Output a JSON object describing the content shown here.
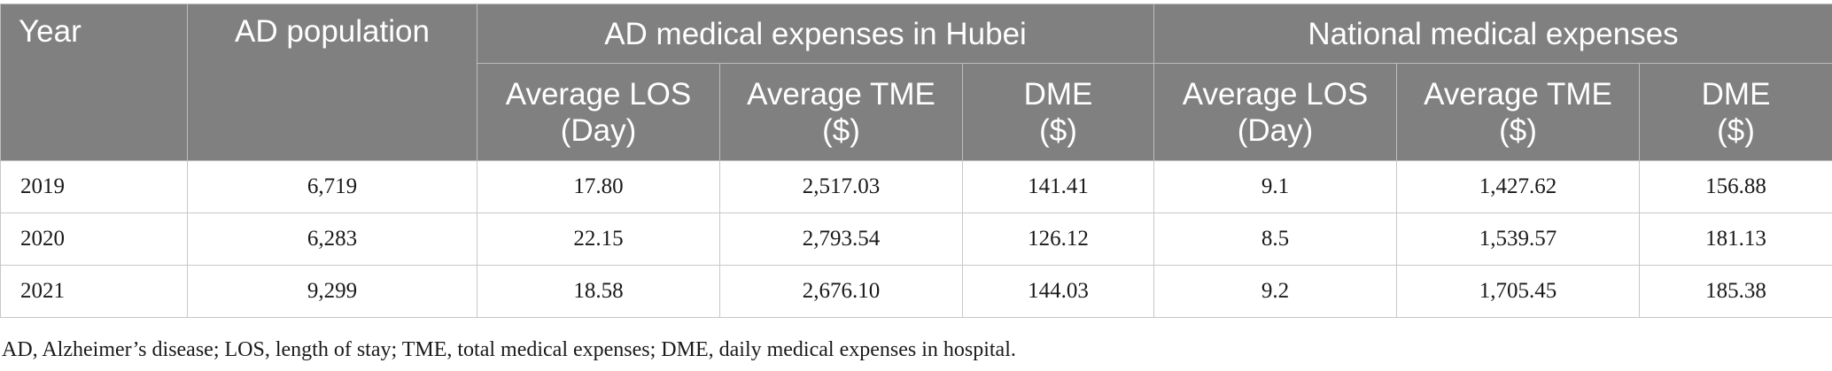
{
  "headers": {
    "year": "Year",
    "population": "AD population",
    "hubei_group": "AD medical expenses in Hubei",
    "national_group": "National medical expenses",
    "sub": [
      {
        "line1": "Average LOS",
        "line2": "(Day)"
      },
      {
        "line1": "Average TME",
        "line2": "($)"
      },
      {
        "line1": "DME",
        "line2": "($)"
      },
      {
        "line1": "Average LOS",
        "line2": "(Day)"
      },
      {
        "line1": "Average TME",
        "line2": "($)"
      },
      {
        "line1": "DME",
        "line2": "($)"
      }
    ]
  },
  "rows": [
    {
      "year": "2019",
      "population": "6,719",
      "hubei_los": "17.80",
      "hubei_tme": "2,517.03",
      "hubei_dme": "141.41",
      "nat_los": "9.1",
      "nat_tme": "1,427.62",
      "nat_dme": "156.88"
    },
    {
      "year": "2020",
      "population": "6,283",
      "hubei_los": "22.15",
      "hubei_tme": "2,793.54",
      "hubei_dme": "126.12",
      "nat_los": "8.5",
      "nat_tme": "1,539.57",
      "nat_dme": "181.13"
    },
    {
      "year": "2021",
      "population": "9,299",
      "hubei_los": "18.58",
      "hubei_tme": "2,676.10",
      "hubei_dme": "144.03",
      "nat_los": "9.2",
      "nat_tme": "1,705.45",
      "nat_dme": "185.38"
    }
  ],
  "footnote": "AD, Alzheimer’s disease; LOS, length of stay; TME, total medical expenses; DME, daily medical expenses in hospital.",
  "colors": {
    "header_bg": "#808080",
    "header_text": "#ffffff",
    "border": "#c8c8c8"
  }
}
